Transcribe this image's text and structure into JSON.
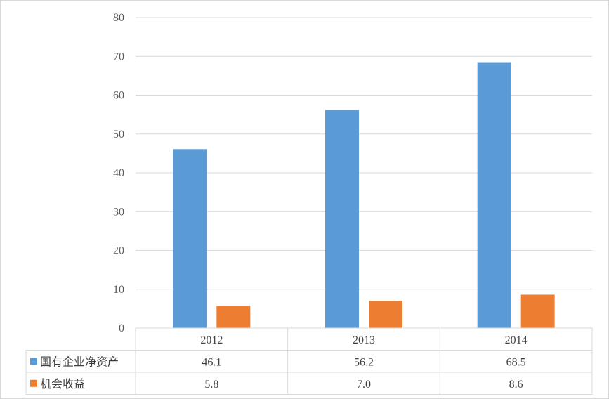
{
  "chart_data": {
    "type": "bar",
    "categories": [
      "2012",
      "2013",
      "2014"
    ],
    "series": [
      {
        "name": "国有企业净资产",
        "values": [
          46.1,
          56.2,
          68.5
        ],
        "labels": [
          "46.1",
          "56.2",
          "68.5"
        ],
        "color": "#5b9bd5"
      },
      {
        "name": "机会收益",
        "values": [
          5.8,
          7.0,
          8.6
        ],
        "labels": [
          "5.8",
          "7.0",
          "8.6"
        ],
        "color": "#ed7d31"
      }
    ],
    "ylim": [
      0,
      80
    ],
    "yticks": [
      "0",
      "10",
      "20",
      "30",
      "40",
      "50",
      "60",
      "70",
      "80"
    ],
    "grid": true,
    "data_table": true,
    "legend": "data-table-left"
  }
}
